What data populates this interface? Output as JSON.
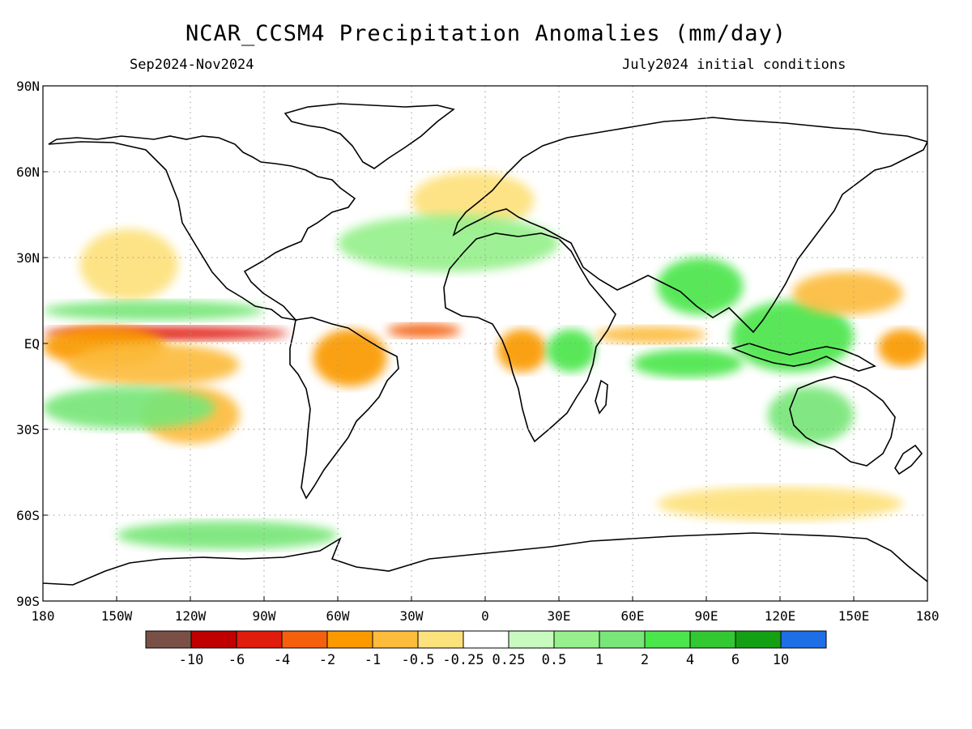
{
  "header": {
    "title": "NCAR_CCSM4 Precipitation Anomalies (mm/day)",
    "period": "Sep2024-Nov2024",
    "init": "July2024 initial conditions"
  },
  "axes": {
    "lat_ticks": [
      "90N",
      "60N",
      "30N",
      "EQ",
      "30S",
      "60S",
      "90S"
    ],
    "lon_ticks": [
      "180",
      "150W",
      "120W",
      "90W",
      "60W",
      "30W",
      "0",
      "30E",
      "60E",
      "90E",
      "120E",
      "150E",
      "180"
    ],
    "lon_range": [
      -180,
      180
    ],
    "lat_range": [
      -90,
      90
    ],
    "grid": "dotted"
  },
  "colorbar": {
    "colors": [
      "#7a5046",
      "#c00000",
      "#e01c0c",
      "#f5600c",
      "#fa9a00",
      "#fcbc3c",
      "#fde17c",
      "#ffffff",
      "#c8fac0",
      "#96f08c",
      "#78e678",
      "#4be64b",
      "#32c832",
      "#14a014",
      "#1e6ee6"
    ],
    "labels": [
      "-10",
      "-6",
      "-4",
      "-2",
      "-1",
      "-0.5",
      "-0.25",
      "0.25",
      "0.5",
      "1",
      "2",
      "4",
      "6",
      "10"
    ]
  },
  "chart_data": {
    "type": "heatmap",
    "variable": "Precipitation Anomalies",
    "units": "mm/day",
    "anomaly_regions": [
      {
        "lon": [
          -180,
          -80
        ],
        "lat": [
          1,
          6
        ],
        "level": -6
      },
      {
        "lon": [
          -180,
          -130
        ],
        "lat": [
          -8,
          6
        ],
        "level": -2
      },
      {
        "lon": [
          -170,
          -100
        ],
        "lat": [
          -15,
          0
        ],
        "level": -1
      },
      {
        "lon": [
          -140,
          -100
        ],
        "lat": [
          -35,
          -15
        ],
        "level": -1
      },
      {
        "lon": [
          -165,
          -125
        ],
        "lat": [
          15,
          40
        ],
        "level": -0.5
      },
      {
        "lon": [
          -180,
          -90
        ],
        "lat": [
          8,
          15
        ],
        "level": 1
      },
      {
        "lon": [
          -180,
          -110
        ],
        "lat": [
          -30,
          -15
        ],
        "level": 1
      },
      {
        "lon": [
          -70,
          -40
        ],
        "lat": [
          -15,
          5
        ],
        "level": -2
      },
      {
        "lon": [
          -40,
          -10
        ],
        "lat": [
          2,
          7
        ],
        "level": -4
      },
      {
        "lon": [
          5,
          25
        ],
        "lat": [
          -10,
          5
        ],
        "level": -2
      },
      {
        "lon": [
          25,
          45
        ],
        "lat": [
          -10,
          5
        ],
        "level": 2
      },
      {
        "lon": [
          60,
          105
        ],
        "lat": [
          -12,
          -2
        ],
        "level": 2
      },
      {
        "lon": [
          45,
          90
        ],
        "lat": [
          0,
          6
        ],
        "level": -1
      },
      {
        "lon": [
          70,
          105
        ],
        "lat": [
          10,
          30
        ],
        "level": 2
      },
      {
        "lon": [
          100,
          150
        ],
        "lat": [
          -10,
          15
        ],
        "level": 2
      },
      {
        "lon": [
          125,
          170
        ],
        "lat": [
          10,
          25
        ],
        "level": -1
      },
      {
        "lon": [
          160,
          180
        ],
        "lat": [
          -8,
          5
        ],
        "level": -2
      },
      {
        "lon": [
          115,
          150
        ],
        "lat": [
          -35,
          -15
        ],
        "level": 1
      },
      {
        "lon": [
          70,
          170
        ],
        "lat": [
          -62,
          -50
        ],
        "level": -0.5
      },
      {
        "lon": [
          -150,
          -60
        ],
        "lat": [
          -72,
          -62
        ],
        "level": 1
      },
      {
        "lon": [
          -30,
          20
        ],
        "lat": [
          40,
          60
        ],
        "level": -0.5
      },
      {
        "lon": [
          -60,
          30
        ],
        "lat": [
          25,
          45
        ],
        "level": 0.5
      }
    ]
  }
}
